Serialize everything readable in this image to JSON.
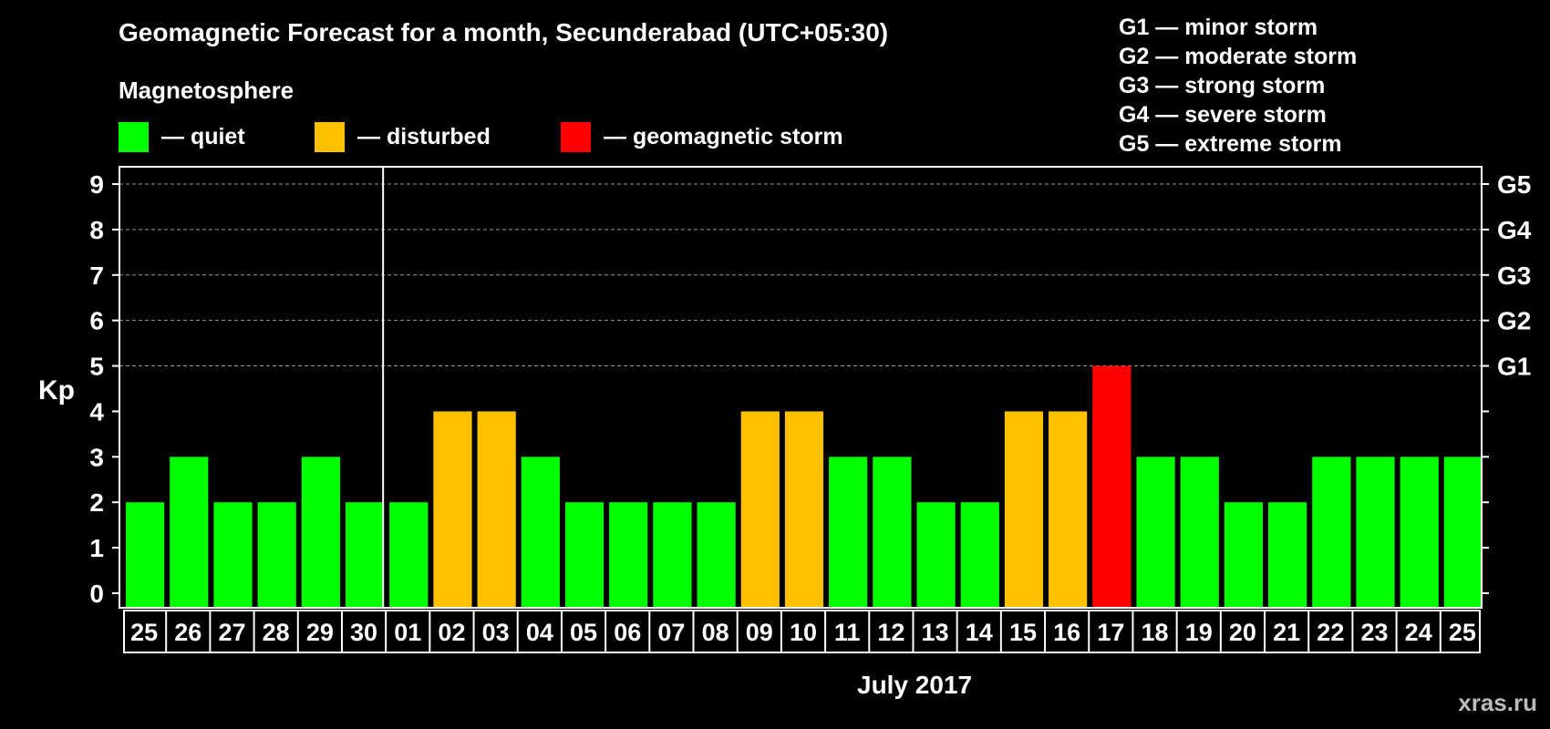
{
  "chart_data": {
    "type": "bar",
    "title": "Geomagnetic Forecast for a month, Secunderabad (UTC+05:30)",
    "subtitle": "Magnetosphere",
    "legend": [
      {
        "label": "— quiet",
        "color": "#00ff00"
      },
      {
        "label": "— disturbed",
        "color": "#ffc000"
      },
      {
        "label": "— geomagnetic storm",
        "color": "#ff0000"
      }
    ],
    "storm_legend": [
      "G1 — minor storm",
      "G2 — moderate storm",
      "G3 — strong storm",
      "G4 — severe storm",
      "G5 — extreme storm"
    ],
    "ylabel": "Kp",
    "ylim": [
      0,
      9
    ],
    "yticks": [
      "0",
      "1",
      "2",
      "3",
      "4",
      "5",
      "6",
      "7",
      "8",
      "9"
    ],
    "right_ticks": [
      {
        "value": 5,
        "label": "G1"
      },
      {
        "value": 6,
        "label": "G2"
      },
      {
        "value": 7,
        "label": "G3"
      },
      {
        "value": 8,
        "label": "G4"
      },
      {
        "value": 9,
        "label": "G5"
      }
    ],
    "xlabel": "July 2017",
    "categories": [
      "25",
      "26",
      "27",
      "28",
      "29",
      "30",
      "01",
      "02",
      "03",
      "04",
      "05",
      "06",
      "07",
      "08",
      "09",
      "10",
      "11",
      "12",
      "13",
      "14",
      "15",
      "16",
      "17",
      "18",
      "19",
      "20",
      "21",
      "22",
      "23",
      "24",
      "25"
    ],
    "values": [
      2,
      3,
      2,
      2,
      3,
      2,
      2,
      4,
      4,
      3,
      2,
      2,
      2,
      2,
      4,
      4,
      3,
      3,
      2,
      2,
      4,
      4,
      5,
      3,
      3,
      2,
      2,
      3,
      3,
      3,
      3
    ],
    "month_divider_after_index": 5,
    "grid": true
  },
  "watermark": "xras.ru"
}
